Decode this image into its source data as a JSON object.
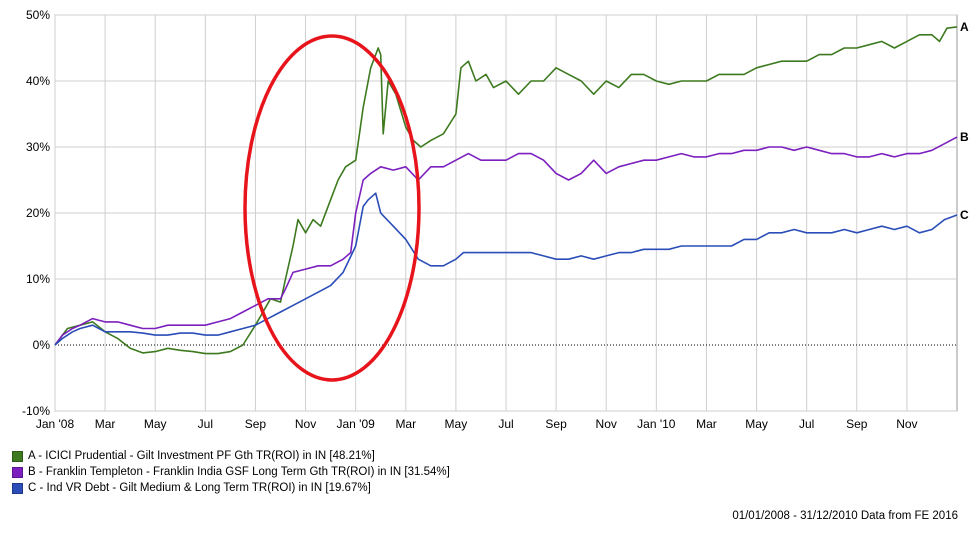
{
  "chart_data": {
    "type": "line",
    "ylim": [
      -10,
      50
    ],
    "y_ticks": [
      "-10%",
      "0%",
      "10%",
      "20%",
      "30%",
      "40%",
      "50%"
    ],
    "y_tick_values": [
      -10,
      0,
      10,
      20,
      30,
      40,
      50
    ],
    "x_ticks": [
      "Jan '08",
      "Mar",
      "May",
      "Jul",
      "Sep",
      "Nov",
      "Jan '09",
      "Mar",
      "May",
      "Jul",
      "Sep",
      "Nov",
      "Jan '10",
      "Mar",
      "May",
      "Jul",
      "Sep",
      "Nov"
    ],
    "x_tick_months": [
      0,
      2,
      4,
      6,
      8,
      10,
      12,
      14,
      16,
      18,
      20,
      22,
      24,
      26,
      28,
      30,
      32,
      34
    ],
    "x_range_months": [
      0,
      36
    ],
    "grid": true,
    "legend_position": "bottom-left",
    "series": [
      {
        "name": "A - ICICI Prudential - Gilt Investment PF Gth TR(ROI) in IN [48.21%]",
        "end_label": "A",
        "color": "#3d7a1f",
        "points": [
          [
            0,
            0
          ],
          [
            0.2,
            1
          ],
          [
            0.5,
            2.5
          ],
          [
            1,
            3
          ],
          [
            1.5,
            3.5
          ],
          [
            2,
            2
          ],
          [
            2.5,
            1
          ],
          [
            3,
            -0.5
          ],
          [
            3.5,
            -1.2
          ],
          [
            4,
            -1
          ],
          [
            4.5,
            -0.5
          ],
          [
            5,
            -0.8
          ],
          [
            5.5,
            -1
          ],
          [
            6,
            -1.3
          ],
          [
            6.5,
            -1.3
          ],
          [
            7,
            -1
          ],
          [
            7.5,
            0
          ],
          [
            8,
            3
          ],
          [
            8.3,
            5
          ],
          [
            8.6,
            7
          ],
          [
            9,
            6.5
          ],
          [
            9.2,
            10
          ],
          [
            9.5,
            15
          ],
          [
            9.7,
            19
          ],
          [
            10,
            17
          ],
          [
            10.3,
            19
          ],
          [
            10.6,
            18
          ],
          [
            11,
            22
          ],
          [
            11.3,
            25
          ],
          [
            11.6,
            27
          ],
          [
            12,
            28
          ],
          [
            12.3,
            36
          ],
          [
            12.6,
            42
          ],
          [
            12.9,
            45
          ],
          [
            13.0,
            44
          ],
          [
            13.1,
            32
          ],
          [
            13.3,
            40
          ],
          [
            13.6,
            38
          ],
          [
            14,
            33
          ],
          [
            14.3,
            31
          ],
          [
            14.6,
            30
          ],
          [
            15,
            31
          ],
          [
            15.5,
            32
          ],
          [
            16,
            35
          ],
          [
            16.2,
            42
          ],
          [
            16.5,
            43
          ],
          [
            16.8,
            40
          ],
          [
            17.2,
            41
          ],
          [
            17.5,
            39
          ],
          [
            18,
            40
          ],
          [
            18.5,
            38
          ],
          [
            19,
            40
          ],
          [
            19.5,
            40
          ],
          [
            20,
            42
          ],
          [
            20.5,
            41
          ],
          [
            21,
            40
          ],
          [
            21.5,
            38
          ],
          [
            22,
            40
          ],
          [
            22.5,
            39
          ],
          [
            23,
            41
          ],
          [
            23.5,
            41
          ],
          [
            24,
            40
          ],
          [
            24.5,
            39.5
          ],
          [
            25,
            40
          ],
          [
            25.5,
            40
          ],
          [
            26,
            40
          ],
          [
            26.5,
            41
          ],
          [
            27,
            41
          ],
          [
            27.5,
            41
          ],
          [
            28,
            42
          ],
          [
            28.5,
            42.5
          ],
          [
            29,
            43
          ],
          [
            29.5,
            43
          ],
          [
            30,
            43
          ],
          [
            30.5,
            44
          ],
          [
            31,
            44
          ],
          [
            31.5,
            45
          ],
          [
            32,
            45
          ],
          [
            32.5,
            45.5
          ],
          [
            33,
            46
          ],
          [
            33.5,
            45
          ],
          [
            34,
            46
          ],
          [
            34.5,
            47
          ],
          [
            35,
            47
          ],
          [
            35.3,
            46
          ],
          [
            35.6,
            48
          ],
          [
            36,
            48.2
          ]
        ]
      },
      {
        "name": "B - Franklin Templeton - Franklin India GSF Long Term Gth TR(ROI) in IN [31.54%]",
        "end_label": "B",
        "color": "#7b1fbf",
        "points": [
          [
            0,
            0
          ],
          [
            0.3,
            1.5
          ],
          [
            0.7,
            2.5
          ],
          [
            1,
            3
          ],
          [
            1.5,
            4
          ],
          [
            2,
            3.5
          ],
          [
            2.5,
            3.5
          ],
          [
            3,
            3
          ],
          [
            3.5,
            2.5
          ],
          [
            4,
            2.5
          ],
          [
            4.5,
            3
          ],
          [
            5,
            3
          ],
          [
            5.5,
            3
          ],
          [
            6,
            3
          ],
          [
            6.5,
            3.5
          ],
          [
            7,
            4
          ],
          [
            7.5,
            5
          ],
          [
            8,
            6
          ],
          [
            8.5,
            7
          ],
          [
            9,
            7
          ],
          [
            9.2,
            8.5
          ],
          [
            9.5,
            11
          ],
          [
            10,
            11.5
          ],
          [
            10.5,
            12
          ],
          [
            11,
            12
          ],
          [
            11.5,
            13
          ],
          [
            11.8,
            14
          ],
          [
            12,
            20
          ],
          [
            12.3,
            25
          ],
          [
            12.6,
            26
          ],
          [
            13,
            27
          ],
          [
            13.5,
            26.5
          ],
          [
            14,
            27
          ],
          [
            14.5,
            25
          ],
          [
            15,
            27
          ],
          [
            15.5,
            27
          ],
          [
            16,
            28
          ],
          [
            16.5,
            29
          ],
          [
            17,
            28
          ],
          [
            17.5,
            28
          ],
          [
            18,
            28
          ],
          [
            18.5,
            29
          ],
          [
            19,
            29
          ],
          [
            19.5,
            28
          ],
          [
            20,
            26
          ],
          [
            20.5,
            25
          ],
          [
            21,
            26
          ],
          [
            21.5,
            28
          ],
          [
            22,
            26
          ],
          [
            22.5,
            27
          ],
          [
            23,
            27.5
          ],
          [
            23.5,
            28
          ],
          [
            24,
            28
          ],
          [
            24.5,
            28.5
          ],
          [
            25,
            29
          ],
          [
            25.5,
            28.5
          ],
          [
            26,
            28.5
          ],
          [
            26.5,
            29
          ],
          [
            27,
            29
          ],
          [
            27.5,
            29.5
          ],
          [
            28,
            29.5
          ],
          [
            28.5,
            30
          ],
          [
            29,
            30
          ],
          [
            29.5,
            29.5
          ],
          [
            30,
            30
          ],
          [
            30.5,
            29.5
          ],
          [
            31,
            29
          ],
          [
            31.5,
            29
          ],
          [
            32,
            28.5
          ],
          [
            32.5,
            28.5
          ],
          [
            33,
            29
          ],
          [
            33.5,
            28.5
          ],
          [
            34,
            29
          ],
          [
            34.5,
            29
          ],
          [
            35,
            29.5
          ],
          [
            35.5,
            30.5
          ],
          [
            36,
            31.5
          ]
        ]
      },
      {
        "name": "C - Ind VR Debt - Gilt Medium & Long Term TR(ROI) in IN [19.67%]",
        "end_label": "C",
        "color": "#2a4db8",
        "points": [
          [
            0,
            0
          ],
          [
            0.3,
            1
          ],
          [
            0.7,
            2
          ],
          [
            1,
            2.5
          ],
          [
            1.5,
            3
          ],
          [
            2,
            2
          ],
          [
            2.5,
            2
          ],
          [
            3,
            2
          ],
          [
            3.5,
            1.8
          ],
          [
            4,
            1.5
          ],
          [
            4.5,
            1.5
          ],
          [
            5,
            1.8
          ],
          [
            5.5,
            1.8
          ],
          [
            6,
            1.5
          ],
          [
            6.5,
            1.5
          ],
          [
            7,
            2
          ],
          [
            7.5,
            2.5
          ],
          [
            8,
            3
          ],
          [
            8.5,
            4
          ],
          [
            9,
            5
          ],
          [
            9.5,
            6
          ],
          [
            10,
            7
          ],
          [
            10.5,
            8
          ],
          [
            11,
            9
          ],
          [
            11.5,
            11
          ],
          [
            12,
            15
          ],
          [
            12.3,
            21
          ],
          [
            12.5,
            22
          ],
          [
            12.8,
            23
          ],
          [
            13,
            20
          ],
          [
            13.5,
            18
          ],
          [
            14,
            16
          ],
          [
            14.5,
            13
          ],
          [
            15,
            12
          ],
          [
            15.5,
            12
          ],
          [
            16,
            13
          ],
          [
            16.3,
            14
          ],
          [
            16.6,
            14
          ],
          [
            17,
            14
          ],
          [
            17.5,
            14
          ],
          [
            18,
            14
          ],
          [
            18.5,
            14
          ],
          [
            19,
            14
          ],
          [
            19.5,
            13.5
          ],
          [
            20,
            13
          ],
          [
            20.5,
            13
          ],
          [
            21,
            13.5
          ],
          [
            21.5,
            13
          ],
          [
            22,
            13.5
          ],
          [
            22.5,
            14
          ],
          [
            23,
            14
          ],
          [
            23.5,
            14.5
          ],
          [
            24,
            14.5
          ],
          [
            24.5,
            14.5
          ],
          [
            25,
            15
          ],
          [
            25.5,
            15
          ],
          [
            26,
            15
          ],
          [
            26.5,
            15
          ],
          [
            27,
            15
          ],
          [
            27.5,
            16
          ],
          [
            28,
            16
          ],
          [
            28.5,
            17
          ],
          [
            29,
            17
          ],
          [
            29.5,
            17.5
          ],
          [
            30,
            17
          ],
          [
            30.5,
            17
          ],
          [
            31,
            17
          ],
          [
            31.5,
            17.5
          ],
          [
            32,
            17
          ],
          [
            32.5,
            17.5
          ],
          [
            33,
            18
          ],
          [
            33.5,
            17.5
          ],
          [
            34,
            18
          ],
          [
            34.5,
            17
          ],
          [
            35,
            17.5
          ],
          [
            35.5,
            19
          ],
          [
            36,
            19.7
          ]
        ]
      }
    ]
  },
  "footer": {
    "range_text": "01/01/2008 - 31/12/2010 Data from FE 2016"
  }
}
